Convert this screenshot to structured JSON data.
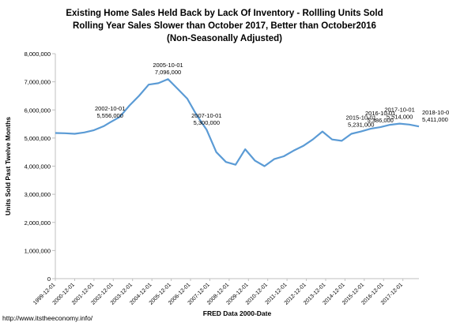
{
  "title_lines": [
    "Existing Home Sales Held Back by Lack Of Inventory  - Rollling Units Sold",
    "Rolling Year Sales Slower than October 2017, Better than October2016",
    "(Non-Seasonally Adjusted)"
  ],
  "credit": "http://www.itstheeconomy.info/",
  "chart_data": {
    "type": "line",
    "xlabel": "FRED Data 2000-Date",
    "ylabel": "Units Sold Past Twelve Months",
    "ylim": [
      0,
      8000000
    ],
    "y_ticks": [
      "0",
      "1,000,000",
      "2,000,000",
      "3,000,000",
      "4,000,000",
      "5,000,000",
      "6,000,000",
      "7,000,000",
      "8,000,000"
    ],
    "x_tick_labels": [
      "1999-12-01",
      "2000-12-01",
      "2001-12-01",
      "2002-12-01",
      "2003-12-01",
      "2004-12-01",
      "2005-12-01",
      "2006-12-01",
      "2007-12-01",
      "2008-12-01",
      "2009-12-01",
      "2010-12-01",
      "2011-12-01",
      "2012-12-01",
      "2013-12-01",
      "2014-12-01",
      "2015-12-01",
      "2016-12-01",
      "2017-12-01"
    ],
    "x_range": [
      "1999-12-01",
      "2018-10-01"
    ],
    "line_color": "#5b9bd5",
    "series": [
      {
        "x": [
          "1999-12-01",
          "2000-06-01",
          "2000-12-01",
          "2001-06-01",
          "2001-12-01",
          "2002-06-01",
          "2002-10-01",
          "2003-04-01",
          "2003-10-01",
          "2004-04-01",
          "2004-10-01",
          "2005-04-01",
          "2005-10-01",
          "2006-04-01",
          "2006-10-01",
          "2007-04-01",
          "2007-10-01",
          "2008-04-01",
          "2008-10-01",
          "2009-04-01",
          "2009-10-01",
          "2010-04-01",
          "2010-10-01",
          "2011-04-01",
          "2011-10-01",
          "2012-04-01",
          "2012-10-01",
          "2013-04-01",
          "2013-10-01",
          "2014-04-01",
          "2014-10-01",
          "2015-04-01",
          "2015-10-01",
          "2016-04-01",
          "2016-10-01",
          "2017-04-01",
          "2017-10-01",
          "2018-04-01",
          "2018-10-01"
        ],
        "values": [
          5180000,
          5170000,
          5150000,
          5200000,
          5280000,
          5420000,
          5556000,
          5750000,
          6150000,
          6500000,
          6900000,
          6950000,
          7096000,
          6750000,
          6400000,
          5800000,
          5300000,
          4500000,
          4150000,
          4050000,
          4600000,
          4200000,
          4000000,
          4250000,
          4350000,
          4550000,
          4720000,
          4950000,
          5231000,
          4950000,
          4900000,
          5150000,
          5231000,
          5330000,
          5386000,
          5470000,
          5514000,
          5480000,
          5411000
        ]
      }
    ],
    "annotations": [
      {
        "date": "2002-10-01",
        "value": "5,556,000"
      },
      {
        "date": "2005-10-01",
        "value": "7,096,000"
      },
      {
        "date": "2007-10-01",
        "value": "5,300,000"
      },
      {
        "date": "2015-10-01",
        "value": "5,231,000"
      },
      {
        "date": "2016-10-01",
        "value": "5,386,000"
      },
      {
        "date": "2017-10-01",
        "value": "5,514,000"
      },
      {
        "date": "2018-10-01",
        "value": "5,411,000"
      }
    ]
  }
}
